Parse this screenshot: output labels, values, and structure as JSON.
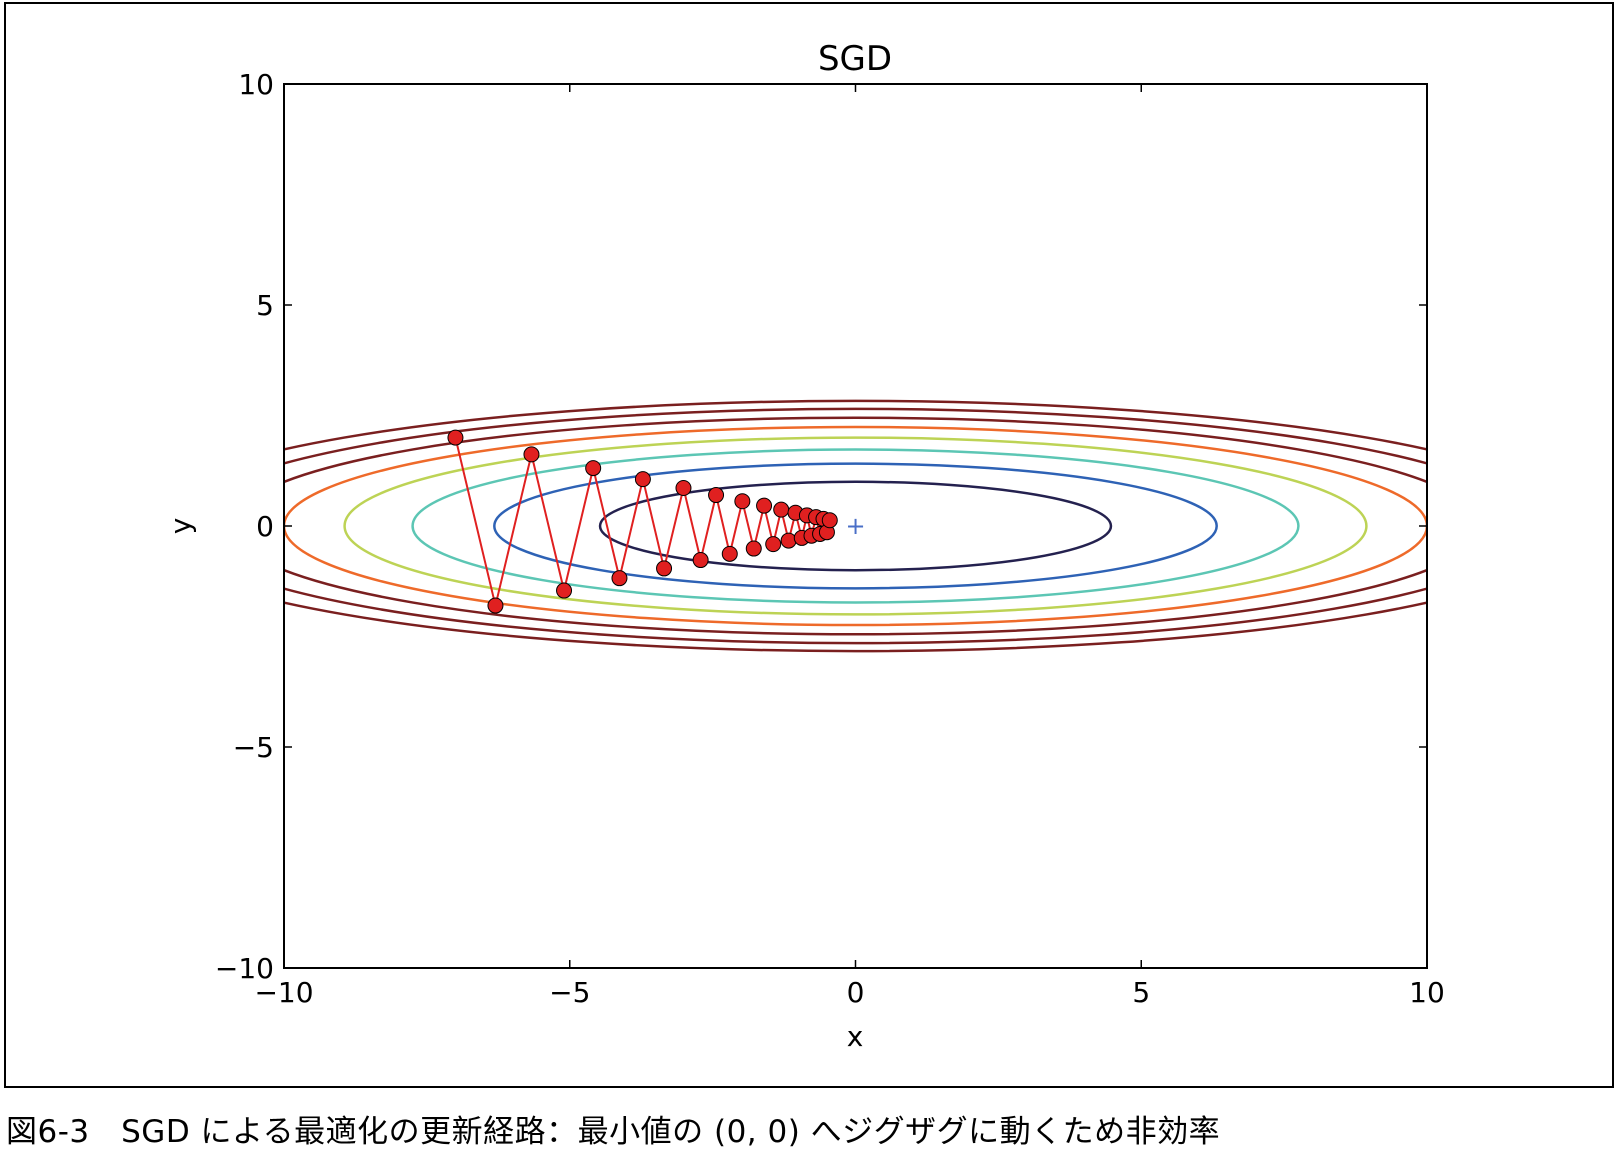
{
  "caption": "図6-3　SGD による最適化の更新経路：最小値の (0, 0) へジグザグに動くため非効率",
  "chart_data": {
    "type": "line",
    "title": "SGD",
    "xlabel": "x",
    "ylabel": "y",
    "xlim": [
      -10,
      10
    ],
    "ylim": [
      -10,
      10
    ],
    "xticks": [
      -10,
      -5,
      0,
      5,
      10
    ],
    "yticks": [
      -10,
      -5,
      0,
      5,
      10
    ],
    "xtick_labels": [
      "−10",
      "−5",
      "0",
      "5",
      "10"
    ],
    "ytick_labels": [
      "−10",
      "−5",
      "0",
      "5",
      "10"
    ],
    "grid": false,
    "minimum_marker": {
      "x": 0,
      "y": 0,
      "symbol": "+",
      "color": "#4a6fc7"
    },
    "contours": {
      "function": "x^2/20 + y^2",
      "levels": [
        {
          "semi_x": 4.47,
          "semi_y": 1.0,
          "color": "#24214f"
        },
        {
          "semi_x": 6.32,
          "semi_y": 1.41,
          "color": "#2e62b5"
        },
        {
          "semi_x": 7.75,
          "semi_y": 1.73,
          "color": "#5cc6b4"
        },
        {
          "semi_x": 8.94,
          "semi_y": 2.0,
          "color": "#bdd355"
        },
        {
          "semi_x": 10.0,
          "semi_y": 2.24,
          "color": "#ee6a2a"
        },
        {
          "semi_x": 10.95,
          "semi_y": 2.45,
          "color": "#7a1f1f"
        },
        {
          "semi_x": 11.83,
          "semi_y": 2.65,
          "color": "#7a1f1f"
        },
        {
          "semi_x": 12.65,
          "semi_y": 2.83,
          "color": "#7a1f1f"
        }
      ]
    },
    "path": {
      "color": "#e02020",
      "marker_fill": "#e02020",
      "x": [
        -7.0,
        -6.3,
        -5.67,
        -5.1,
        -4.59,
        -4.13,
        -3.72,
        -3.35,
        -3.01,
        -2.71,
        -2.44,
        -2.2,
        -1.98,
        -1.78,
        -1.6,
        -1.44,
        -1.3,
        -1.17,
        -1.05,
        -0.94,
        -0.85,
        -0.77,
        -0.69,
        -0.62,
        -0.56,
        -0.5,
        -0.45
      ],
      "y": [
        2.0,
        -1.8,
        1.62,
        -1.46,
        1.31,
        -1.18,
        1.06,
        -0.96,
        0.86,
        -0.77,
        0.7,
        -0.63,
        0.56,
        -0.51,
        0.46,
        -0.41,
        0.37,
        -0.33,
        0.3,
        -0.27,
        0.24,
        -0.22,
        0.2,
        -0.18,
        0.16,
        -0.14,
        0.13
      ]
    }
  }
}
